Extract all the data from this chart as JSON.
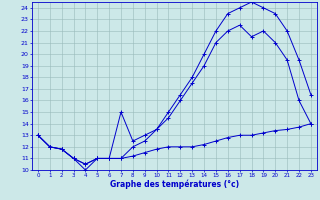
{
  "xlabel": "Graphe des températures (°c)",
  "xlim": [
    -0.5,
    23.5
  ],
  "ylim": [
    10,
    24.5
  ],
  "xticks": [
    0,
    1,
    2,
    3,
    4,
    5,
    6,
    7,
    8,
    9,
    10,
    11,
    12,
    13,
    14,
    15,
    16,
    17,
    18,
    19,
    20,
    21,
    22,
    23
  ],
  "yticks": [
    10,
    11,
    12,
    13,
    14,
    15,
    16,
    17,
    18,
    19,
    20,
    21,
    22,
    23,
    24
  ],
  "bg_color": "#cce8e8",
  "line_color": "#0000cc",
  "grid_color": "#99bbbb",
  "curve_min_x": [
    0,
    1,
    2,
    3,
    4,
    5,
    6,
    7,
    8,
    9,
    10,
    11,
    12,
    13,
    14,
    15,
    16,
    17,
    18,
    19,
    20,
    21,
    22,
    23
  ],
  "curve_min_y": [
    13,
    12,
    11.8,
    11,
    10,
    11,
    11,
    11,
    11.2,
    11.5,
    11.8,
    12,
    12,
    12,
    12.2,
    12.5,
    12.8,
    13,
    13,
    13.2,
    13.4,
    13.5,
    13.7,
    14
  ],
  "curve_mid_x": [
    0,
    1,
    2,
    3,
    4,
    5,
    6,
    7,
    8,
    9,
    10,
    11,
    12,
    13,
    14,
    15,
    16,
    17,
    18,
    19,
    20,
    21,
    22,
    23
  ],
  "curve_mid_y": [
    13,
    12,
    11.8,
    11,
    10.5,
    11,
    11,
    15,
    12.5,
    13,
    13.5,
    14.5,
    16,
    17.5,
    19,
    21,
    22,
    22.5,
    21.5,
    22,
    21,
    19.5,
    16,
    14
  ],
  "curve_max_x": [
    0,
    1,
    2,
    3,
    4,
    5,
    6,
    7,
    8,
    9,
    10,
    11,
    12,
    13,
    14,
    15,
    16,
    17,
    18,
    19,
    20,
    21,
    22,
    23
  ],
  "curve_max_y": [
    13,
    12,
    11.8,
    11,
    10.5,
    11,
    11,
    11,
    12,
    12.5,
    13.5,
    15,
    16.5,
    18,
    20,
    22,
    23.5,
    24,
    24.5,
    24,
    23.5,
    22,
    19.5,
    16.5
  ]
}
